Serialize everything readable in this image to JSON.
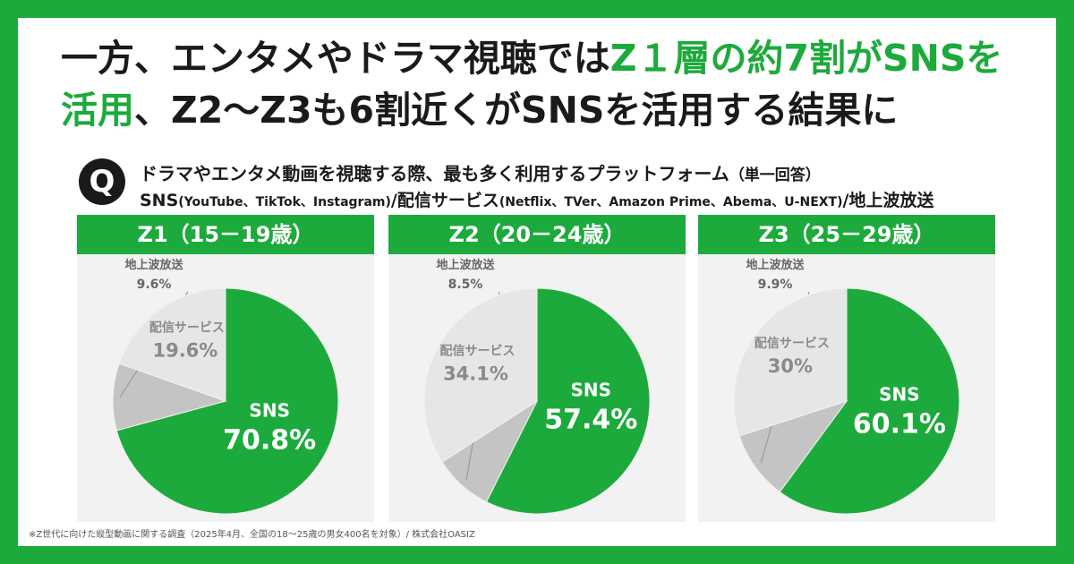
{
  "headline": {
    "line1_dark": "一方、エンタメやドラマ視聴では",
    "line1_green": "Z１層の約7割がSNSを",
    "line2_green": "活用",
    "line2_dark": "、Z2～Z3も6割近くがSNSを活用する結果に"
  },
  "question": {
    "badge": "Q",
    "text": "ドラマやエンタメ動画を視聴する際、最も多く利用するプラットフォーム",
    "note": "（単一回答）",
    "options_sns": "SNS",
    "options_sns_paren": "(YouTube、TikTok、Instagram)",
    "options_mid": "/配信サービス",
    "options_stream_paren": "(Netflix、TVer、Amazon Prime、Abema、U-NEXT)",
    "options_end": "/地上波放送"
  },
  "colors": {
    "brand_green": "#1daa3c",
    "stream_gray": "#e6e6e6",
    "terrestrial_gray": "#c4c4c4",
    "panel_bg": "#f2f2f2",
    "label_gray": "#8a8a8a"
  },
  "chart_data": [
    {
      "type": "pie",
      "title": "Z1（15－19歳）",
      "slices": [
        {
          "name": "SNS",
          "label": "70.8%",
          "value": 70.8
        },
        {
          "name": "地上波放送",
          "label": "9.6%",
          "value": 9.6
        },
        {
          "name": "配信サービス",
          "label": "19.6%",
          "value": 19.6
        }
      ]
    },
    {
      "type": "pie",
      "title": "Z2（20－24歳）",
      "slices": [
        {
          "name": "SNS",
          "label": "57.4%",
          "value": 57.4
        },
        {
          "name": "地上波放送",
          "label": "8.5%",
          "value": 8.5
        },
        {
          "name": "配信サービス",
          "label": "34.1%",
          "value": 34.1
        }
      ]
    },
    {
      "type": "pie",
      "title": "Z3（25－29歳）",
      "slices": [
        {
          "name": "SNS",
          "label": "60.1%",
          "value": 60.1
        },
        {
          "name": "地上波放送",
          "label": "9.9%",
          "value": 9.9
        },
        {
          "name": "配信サービス",
          "label": "30%",
          "value": 30
        }
      ]
    }
  ],
  "footnote": "※Z世代に向けた縦型動画に関する調査（2025年4月、全国の18～25歳の男女400名を対象）/ 株式会社OASIZ"
}
